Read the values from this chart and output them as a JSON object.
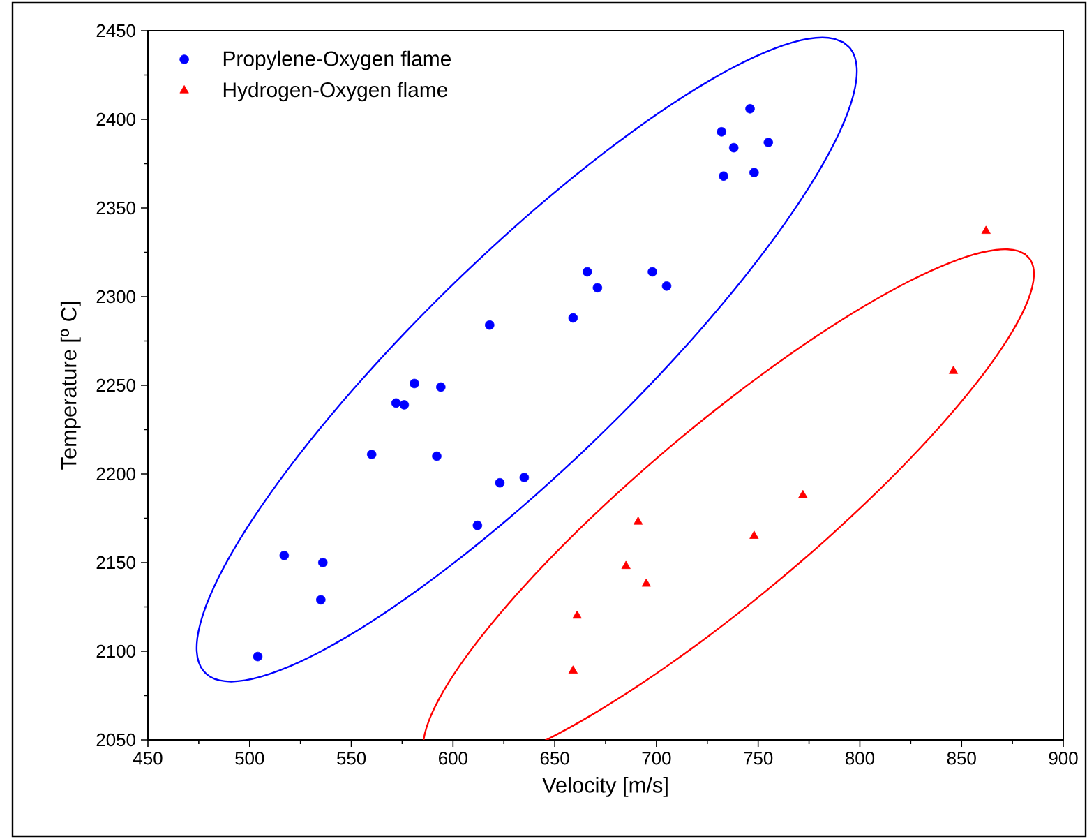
{
  "chart_data": {
    "type": "scatter",
    "xlabel": "Velocity [m/s]",
    "ylabel": "Temperature [$^{o}$ C]",
    "xlim": [
      450,
      900
    ],
    "ylim": [
      2050,
      2450
    ],
    "xticks": [
      450,
      500,
      550,
      600,
      650,
      700,
      750,
      800,
      850,
      900
    ],
    "yticks": [
      2050,
      2100,
      2150,
      2200,
      2250,
      2300,
      2350,
      2400,
      2450
    ],
    "grid": false,
    "legend": "top left",
    "series": [
      {
        "name": "Propylene-Oxygen flame",
        "color": "#0000ff",
        "marker": "circle",
        "x": [
          504,
          517,
          536,
          535,
          560,
          572,
          576,
          581,
          594,
          592,
          612,
          623,
          635,
          618,
          659,
          666,
          671,
          698,
          705,
          732,
          733,
          738,
          746,
          748,
          755
        ],
        "values": [
          2097,
          2154,
          2150,
          2129,
          2211,
          2240,
          2239,
          2251,
          2249,
          2210,
          2171,
          2195,
          2198,
          2284,
          2288,
          2314,
          2305,
          2314,
          2306,
          2393,
          2368,
          2384,
          2406,
          2370,
          2387
        ]
      },
      {
        "name": "Hydrogen-Oxygen flame",
        "color": "#ff0000",
        "marker": "triangle",
        "x": [
          659,
          661,
          685,
          691,
          695,
          748,
          772,
          846,
          862
        ],
        "values": [
          2089,
          2120,
          2148,
          2173,
          2138,
          2165,
          2188,
          2258,
          2337
        ]
      }
    ]
  }
}
